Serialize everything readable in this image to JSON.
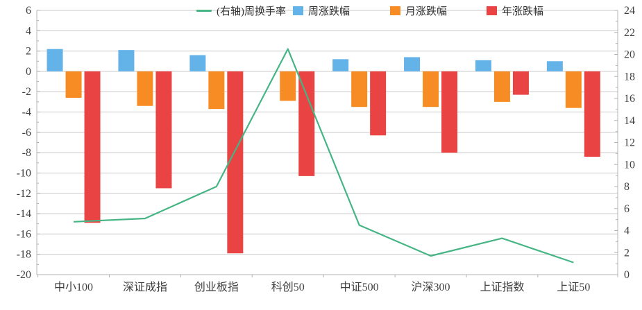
{
  "chart_data": {
    "type": "bar+line combo",
    "title": "",
    "categories": [
      "中小100",
      "深证成指",
      "创业板指",
      "科创50",
      "中证500",
      "沪深300",
      "上证指数",
      "上证50"
    ],
    "series": [
      {
        "name": "(右轴)周换手率",
        "type": "line",
        "axis": "right",
        "color": "#45b584",
        "values": [
          4.8,
          5.1,
          8.0,
          20.5,
          4.5,
          1.7,
          3.3,
          1.1
        ]
      },
      {
        "name": "周涨跌幅",
        "type": "bar",
        "axis": "left",
        "color": "#64b3e8",
        "values": [
          2.2,
          2.1,
          1.6,
          0,
          1.2,
          1.4,
          1.1,
          1.0
        ]
      },
      {
        "name": "月涨跌幅",
        "type": "bar",
        "axis": "left",
        "color": "#f88c24",
        "values": [
          -2.6,
          -3.4,
          -3.7,
          -2.9,
          -3.5,
          -3.5,
          -3.0,
          -3.6
        ]
      },
      {
        "name": "年涨跌幅",
        "type": "bar",
        "axis": "left",
        "color": "#e94343",
        "values": [
          -14.9,
          -11.5,
          -17.9,
          -10.3,
          -6.3,
          -8.0,
          -2.3,
          -8.4
        ]
      }
    ],
    "left_axis": {
      "min": -20,
      "max": 6,
      "step": 2,
      "ticks": [
        6,
        4,
        2,
        0,
        -2,
        -4,
        -6,
        -8,
        -10,
        -12,
        -14,
        -16,
        -18,
        -20
      ]
    },
    "right_axis": {
      "min": 0,
      "max": 24,
      "step": 2,
      "ticks": [
        24,
        22,
        20,
        18,
        16,
        14,
        12,
        10,
        8,
        6,
        4,
        2,
        0
      ]
    },
    "legend_position": "top",
    "grid": true,
    "colors": {
      "gridline": "#c8c8c8",
      "axis_line": "#b3b3b3",
      "text": "#404040"
    }
  }
}
